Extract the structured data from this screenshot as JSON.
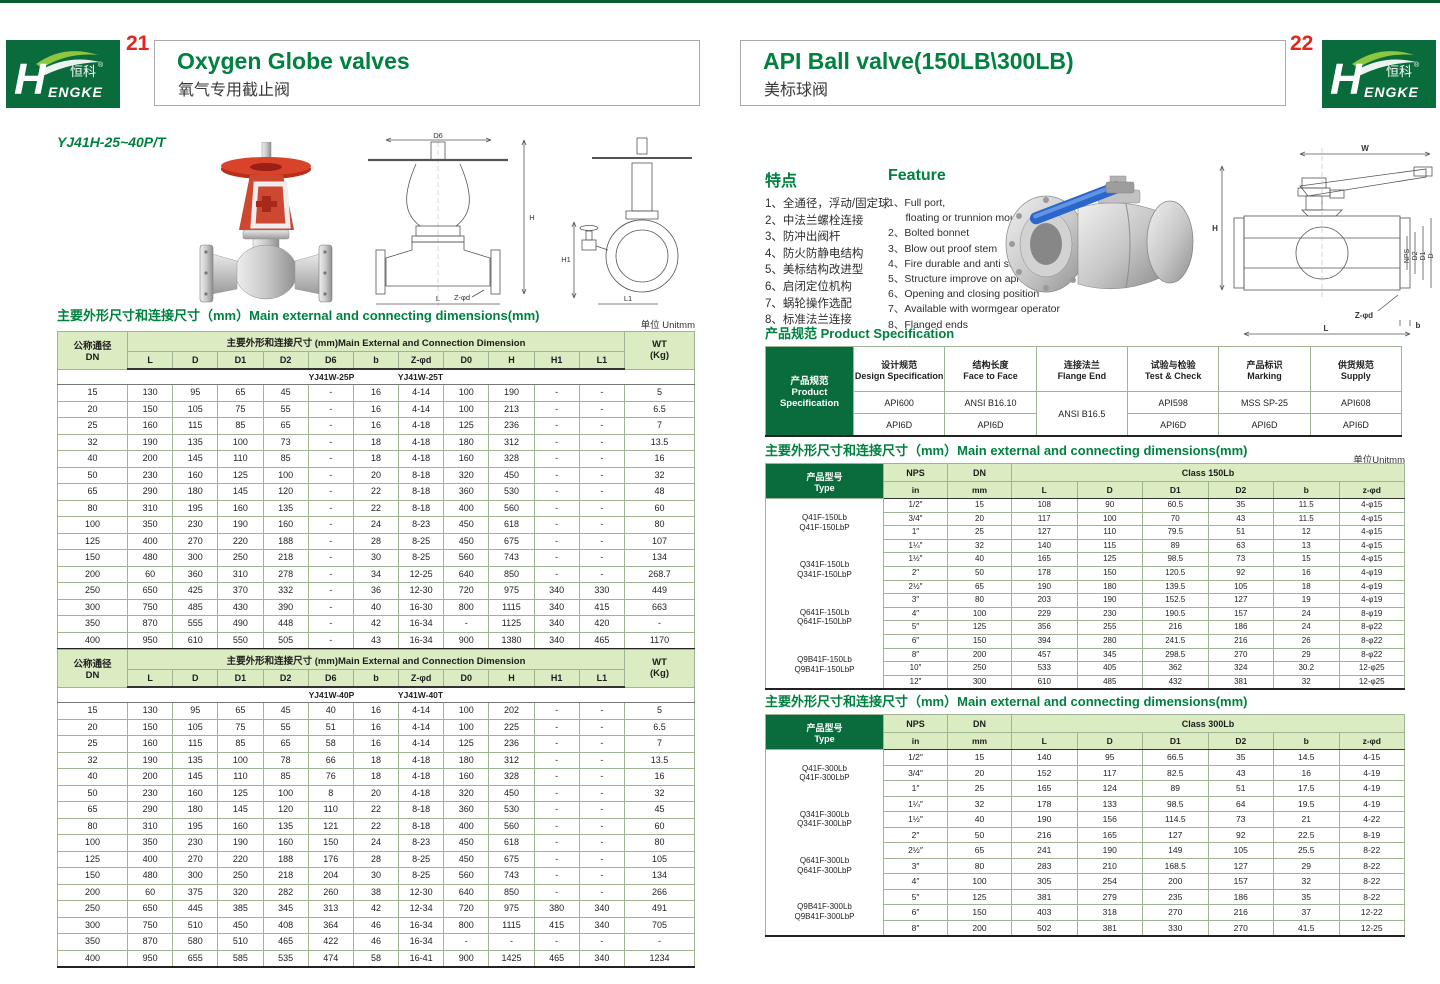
{
  "brand": {
    "initial": "H",
    "name_cn": "恒科",
    "reg": "®",
    "name_en": "ENGKE"
  },
  "header_left": {
    "page": "21",
    "title": "Oxygen Globe valves",
    "subtitle": "氧气专用截止阀"
  },
  "header_right": {
    "page": "22",
    "title": "API Ball valve(150LB\\300LB)",
    "subtitle": "美标球阀"
  },
  "left": {
    "model": "YJ41H-25~40P/T",
    "section_title": "主要外形尺寸和连接尺寸（mm）Main external and connecting dimensions(mm)",
    "unit": "单位 Unitmm",
    "drawing_labels": {
      "d6": "D6",
      "h": "H",
      "l": "L",
      "zphid": "Z-φd",
      "h1": "H1",
      "l1": "L1"
    },
    "table": {
      "dn_header": "公称通径\nDN",
      "span_header": "主要外形和连接尺寸 (mm)Main External and Connection Dimension",
      "wt_header": "WT\n(Kg)",
      "columns": [
        "L",
        "D",
        "D1",
        "D2",
        "D6",
        "b",
        "Z-φd",
        "D0",
        "H",
        "H1",
        "L1"
      ],
      "part1": {
        "variant_p": "YJ41W-25P",
        "variant_t": "YJ41W-25T",
        "rows": [
          [
            "15",
            "130",
            "95",
            "65",
            "45",
            "-",
            "16",
            "4-14",
            "100",
            "190",
            "-",
            "-",
            "5"
          ],
          [
            "20",
            "150",
            "105",
            "75",
            "55",
            "-",
            "16",
            "4-14",
            "100",
            "213",
            "-",
            "-",
            "6.5"
          ],
          [
            "25",
            "160",
            "115",
            "85",
            "65",
            "-",
            "16",
            "4-18",
            "125",
            "236",
            "-",
            "-",
            "7"
          ],
          [
            "32",
            "190",
            "135",
            "100",
            "73",
            "-",
            "18",
            "4-18",
            "180",
            "312",
            "-",
            "-",
            "13.5"
          ],
          [
            "40",
            "200",
            "145",
            "110",
            "85",
            "-",
            "18",
            "4-18",
            "160",
            "328",
            "-",
            "-",
            "16"
          ],
          [
            "50",
            "230",
            "160",
            "125",
            "100",
            "-",
            "20",
            "8-18",
            "320",
            "450",
            "-",
            "-",
            "32"
          ],
          [
            "65",
            "290",
            "180",
            "145",
            "120",
            "-",
            "22",
            "8-18",
            "360",
            "530",
            "-",
            "-",
            "48"
          ],
          [
            "80",
            "310",
            "195",
            "160",
            "135",
            "-",
            "22",
            "8-18",
            "400",
            "560",
            "-",
            "-",
            "60"
          ],
          [
            "100",
            "350",
            "230",
            "190",
            "160",
            "-",
            "24",
            "8-23",
            "450",
            "618",
            "-",
            "-",
            "80"
          ],
          [
            "125",
            "400",
            "270",
            "220",
            "188",
            "-",
            "28",
            "8-25",
            "450",
            "675",
            "-",
            "-",
            "107"
          ],
          [
            "150",
            "480",
            "300",
            "250",
            "218",
            "-",
            "30",
            "8-25",
            "560",
            "743",
            "-",
            "-",
            "134"
          ],
          [
            "200",
            "60",
            "360",
            "310",
            "278",
            "-",
            "34",
            "12-25",
            "640",
            "850",
            "-",
            "-",
            "268.7"
          ],
          [
            "250",
            "650",
            "425",
            "370",
            "332",
            "-",
            "36",
            "12-30",
            "720",
            "975",
            "340",
            "330",
            "449"
          ],
          [
            "300",
            "750",
            "485",
            "430",
            "390",
            "-",
            "40",
            "16-30",
            "800",
            "1115",
            "340",
            "415",
            "663"
          ],
          [
            "350",
            "870",
            "555",
            "490",
            "448",
            "-",
            "42",
            "16-34",
            "-",
            "1125",
            "340",
            "420",
            "-"
          ],
          [
            "400",
            "950",
            "610",
            "550",
            "505",
            "-",
            "43",
            "16-34",
            "900",
            "1380",
            "340",
            "465",
            "1170"
          ]
        ]
      },
      "part2": {
        "variant_p": "YJ41W-40P",
        "variant_t": "YJ41W-40T",
        "rows": [
          [
            "15",
            "130",
            "95",
            "65",
            "45",
            "40",
            "16",
            "4-14",
            "100",
            "202",
            "-",
            "-",
            "5"
          ],
          [
            "20",
            "150",
            "105",
            "75",
            "55",
            "51",
            "16",
            "4-14",
            "100",
            "225",
            "-",
            "-",
            "6.5"
          ],
          [
            "25",
            "160",
            "115",
            "85",
            "65",
            "58",
            "16",
            "4-14",
            "125",
            "236",
            "-",
            "-",
            "7"
          ],
          [
            "32",
            "190",
            "135",
            "100",
            "78",
            "66",
            "18",
            "4-18",
            "180",
            "312",
            "-",
            "-",
            "13.5"
          ],
          [
            "40",
            "200",
            "145",
            "110",
            "85",
            "76",
            "18",
            "4-18",
            "160",
            "328",
            "-",
            "-",
            "16"
          ],
          [
            "50",
            "230",
            "160",
            "125",
            "100",
            "8",
            "20",
            "4-18",
            "320",
            "450",
            "-",
            "-",
            "32"
          ],
          [
            "65",
            "290",
            "180",
            "145",
            "120",
            "110",
            "22",
            "8-18",
            "360",
            "530",
            "-",
            "-",
            "45"
          ],
          [
            "80",
            "310",
            "195",
            "160",
            "135",
            "121",
            "22",
            "8-18",
            "400",
            "560",
            "-",
            "-",
            "60"
          ],
          [
            "100",
            "350",
            "230",
            "190",
            "160",
            "150",
            "24",
            "8-23",
            "450",
            "618",
            "-",
            "-",
            "80"
          ],
          [
            "125",
            "400",
            "270",
            "220",
            "188",
            "176",
            "28",
            "8-25",
            "450",
            "675",
            "-",
            "-",
            "105"
          ],
          [
            "150",
            "480",
            "300",
            "250",
            "218",
            "204",
            "30",
            "8-25",
            "560",
            "743",
            "-",
            "-",
            "134"
          ],
          [
            "200",
            "60",
            "375",
            "320",
            "282",
            "260",
            "38",
            "12-30",
            "640",
            "850",
            "-",
            "-",
            "266"
          ],
          [
            "250",
            "650",
            "445",
            "385",
            "345",
            "313",
            "42",
            "12-34",
            "720",
            "975",
            "380",
            "340",
            "491"
          ],
          [
            "300",
            "750",
            "510",
            "450",
            "408",
            "364",
            "46",
            "16-34",
            "800",
            "1115",
            "415",
            "340",
            "705"
          ],
          [
            "350",
            "870",
            "580",
            "510",
            "465",
            "422",
            "46",
            "16-34",
            "-",
            "-",
            "-",
            "-",
            "-"
          ],
          [
            "400",
            "950",
            "655",
            "585",
            "535",
            "474",
            "58",
            "16-41",
            "900",
            "1425",
            "465",
            "340",
            "1234"
          ]
        ]
      }
    }
  },
  "right": {
    "features_cn_title": "特点",
    "features_cn": [
      "1、全通径，浮动/固定球",
      "2、中法兰螺栓连接",
      "3、防冲出阀杆",
      "4、防火防静电结构",
      "5、美标结构改进型",
      "6、启闭定位机构",
      "7、蜗轮操作选配",
      "8、标准法兰连接"
    ],
    "features_en_title": "Feature",
    "features_en": [
      "1、Full port,",
      "      floating or trunnion mounte type",
      "2、Bolted bonnet",
      "3、Blow out proof stem",
      "4、Fire durable and anti static safety",
      "5、Structure improve on api",
      "6、Opening and closing position",
      "7、Available with wormgear operator",
      "8、Flanged ends"
    ],
    "drawing_labels": {
      "w": "W",
      "h": "H",
      "nps": "NPS",
      "d2": "D2",
      "d1": "D1",
      "d": "D",
      "zphid": "Z-φd",
      "b": "b",
      "l": "L"
    },
    "spec": {
      "title": "产品规范  Product Specification",
      "left_cell": "产品规范\nProduct\nSpecification",
      "headers": [
        "设计规范\nDesign Specification",
        "结构长度\nFace to Face",
        "连接法兰\nFlange End",
        "试验与检验\nTest & Check",
        "产品标识\nMarking",
        "供货规范\nSupply"
      ],
      "flange_value": "ANSI B16.5",
      "r1": [
        "API600",
        "ANSI B16.10",
        "API598",
        "MSS SP-25",
        "API608"
      ],
      "r2": [
        "API6D",
        "API6D",
        "API6D",
        "API6D",
        "API6D"
      ]
    },
    "dims150": {
      "section_title": "主要外形尺寸和连接尺寸（mm）Main external and connecting dimensions(mm)",
      "unit": "单位Unitmm",
      "type_header": "产品型号\nType",
      "nps_header": "NPS",
      "dn_header": "DN",
      "class_header": "Class 150Lb",
      "in_header": "in",
      "mm_header": "mm",
      "columns": [
        "L",
        "D",
        "D1",
        "D2",
        "b",
        "z-φd"
      ],
      "types": [
        "Q41F-150Lb\nQ41F-150LbP",
        "Q341F-150Lb\nQ341F-150LbP",
        "Q641F-150Lb\nQ641F-150LbP",
        "Q9B41F-150Lb\nQ9B41F-150LbP"
      ],
      "rows": [
        [
          "1/2″",
          "15",
          "108",
          "90",
          "60.5",
          "35",
          "11.5",
          "4-φ15"
        ],
        [
          "3/4″",
          "20",
          "117",
          "100",
          "70",
          "43",
          "11.5",
          "4-φ15"
        ],
        [
          "1″",
          "25",
          "127",
          "110",
          "79.5",
          "51",
          "12",
          "4-φ15"
        ],
        [
          "1¼″",
          "32",
          "140",
          "115",
          "89",
          "63",
          "13",
          "4-φ15"
        ],
        [
          "1½″",
          "40",
          "165",
          "125",
          "98.5",
          "73",
          "15",
          "4-φ15"
        ],
        [
          "2″",
          "50",
          "178",
          "150",
          "120.5",
          "92",
          "16",
          "4-φ19"
        ],
        [
          "2½″",
          "65",
          "190",
          "180",
          "139.5",
          "105",
          "18",
          "4-φ19"
        ],
        [
          "3″",
          "80",
          "203",
          "190",
          "152.5",
          "127",
          "19",
          "4-φ19"
        ],
        [
          "4″",
          "100",
          "229",
          "230",
          "190.5",
          "157",
          "24",
          "8-φ19"
        ],
        [
          "5″",
          "125",
          "356",
          "255",
          "216",
          "186",
          "24",
          "8-φ22"
        ],
        [
          "6″",
          "150",
          "394",
          "280",
          "241.5",
          "216",
          "26",
          "8-φ22"
        ],
        [
          "8″",
          "200",
          "457",
          "345",
          "298.5",
          "270",
          "29",
          "8-φ22"
        ],
        [
          "10″",
          "250",
          "533",
          "405",
          "362",
          "324",
          "30.2",
          "12-φ25"
        ],
        [
          "12″",
          "300",
          "610",
          "485",
          "432",
          "381",
          "32",
          "12-φ25"
        ]
      ]
    },
    "dims300": {
      "section_title": "主要外形尺寸和连接尺寸（mm）Main external and connecting dimensions(mm)",
      "type_header": "产品型号\nType",
      "nps_header": "NPS",
      "dn_header": "DN",
      "class_header": "Class 300Lb",
      "in_header": "in",
      "mm_header": "mm",
      "columns": [
        "L",
        "D",
        "D1",
        "D2",
        "b",
        "z-φd"
      ],
      "types": [
        "Q41F-300Lb\nQ41F-300LbP",
        "Q341F-300Lb\nQ341F-300LbP",
        "Q641F-300Lb\nQ641F-300LbP",
        "Q9B41F-300Lb\nQ9B41F-300LbP"
      ],
      "rows": [
        [
          "1/2″",
          "15",
          "140",
          "95",
          "66.5",
          "35",
          "14.5",
          "4-15"
        ],
        [
          "3/4″",
          "20",
          "152",
          "117",
          "82.5",
          "43",
          "16",
          "4-19"
        ],
        [
          "1″",
          "25",
          "165",
          "124",
          "89",
          "51",
          "17.5",
          "4-19"
        ],
        [
          "1¼″",
          "32",
          "178",
          "133",
          "98.5",
          "64",
          "19.5",
          "4-19"
        ],
        [
          "1½″",
          "40",
          "190",
          "156",
          "114.5",
          "73",
          "21",
          "4-22"
        ],
        [
          "2″",
          "50",
          "216",
          "165",
          "127",
          "92",
          "22.5",
          "8-19"
        ],
        [
          "2½″",
          "65",
          "241",
          "190",
          "149",
          "105",
          "25.5",
          "8-22"
        ],
        [
          "3″",
          "80",
          "283",
          "210",
          "168.5",
          "127",
          "29",
          "8-22"
        ],
        [
          "4″",
          "100",
          "305",
          "254",
          "200",
          "157",
          "32",
          "8-22"
        ],
        [
          "5″",
          "125",
          "381",
          "279",
          "235",
          "186",
          "35",
          "8-22"
        ],
        [
          "6″",
          "150",
          "403",
          "318",
          "270",
          "216",
          "37",
          "12-22"
        ],
        [
          "8″",
          "200",
          "502",
          "381",
          "330",
          "270",
          "41.5",
          "12-25"
        ]
      ]
    }
  }
}
